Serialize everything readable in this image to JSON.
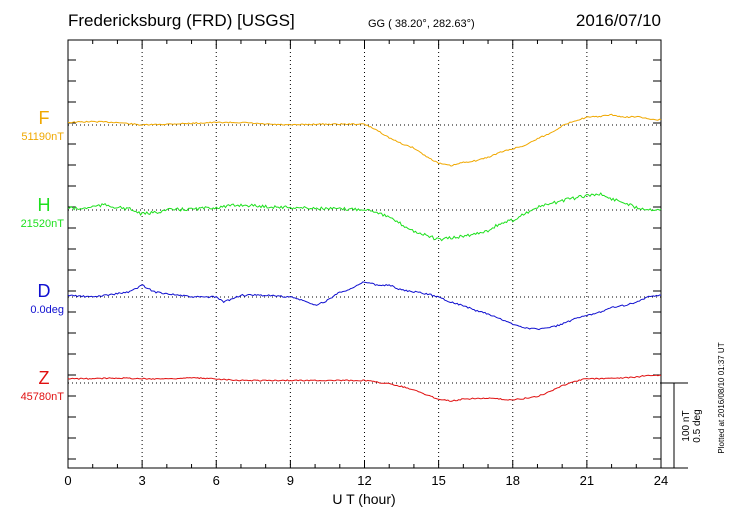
{
  "header": {
    "station": "Fredericksburg (FRD)  [USGS]",
    "coords": "GG ( 38.20°, 282.63°)",
    "date": "2016/07/10"
  },
  "side_note": "Plotted at 2016/08/10 01:37 UT",
  "scale_bar": {
    "top_label": "100 nT",
    "bottom_label": "0.5 deg"
  },
  "chart_data": {
    "type": "line",
    "xlabel": "U T (hour)",
    "xlim": [
      0,
      24
    ],
    "xticks": [
      0,
      3,
      6,
      9,
      12,
      15,
      18,
      21,
      24
    ],
    "grid": true,
    "colors": {
      "F": "#f0a800",
      "H": "#1ee01e",
      "D": "#1010d0",
      "Z": "#e01010"
    },
    "series": [
      {
        "name": "F",
        "baseline_label": "51190nT",
        "unit": "nT",
        "baseline": 51190,
        "x": [
          0,
          1,
          2,
          3,
          4,
          5,
          6,
          7,
          8,
          9,
          10,
          11,
          12,
          12.5,
          13,
          13.5,
          14,
          14.5,
          15,
          15.5,
          16,
          16.5,
          17,
          17.5,
          18,
          18.5,
          19,
          19.5,
          20,
          20.5,
          21,
          21.5,
          22,
          22.5,
          23,
          23.5,
          24
        ],
        "y": [
          3,
          4,
          3,
          0,
          1,
          2,
          3,
          3,
          1,
          0,
          1,
          1,
          1,
          -6,
          -15,
          -22,
          -27,
          -37,
          -45,
          -48,
          -44,
          -42,
          -38,
          -32,
          -28,
          -24,
          -16,
          -10,
          -1,
          5,
          9,
          10,
          12,
          9,
          10,
          7,
          6
        ]
      },
      {
        "name": "H",
        "baseline_label": "21520nT",
        "unit": "nT",
        "baseline": 21520,
        "x": [
          0,
          0.5,
          1,
          1.5,
          2,
          2.5,
          3,
          3.5,
          4,
          5,
          6,
          7,
          8,
          9,
          10,
          11,
          12,
          12.5,
          13,
          13.5,
          14,
          14.5,
          15,
          15.5,
          16,
          16.5,
          17,
          17.5,
          18,
          18.5,
          19,
          19.5,
          20,
          20.5,
          21,
          21.5,
          22,
          22.5,
          23,
          23.5,
          24
        ],
        "y": [
          3,
          1,
          4,
          6,
          3,
          1,
          -5,
          -3,
          0,
          1,
          3,
          6,
          4,
          3,
          2,
          1,
          1,
          -2,
          -9,
          -17,
          -25,
          -30,
          -35,
          -33,
          -31,
          -28,
          -24,
          -16,
          -12,
          -4,
          3,
          7,
          11,
          14,
          17,
          19,
          13,
          9,
          3,
          1,
          1
        ]
      },
      {
        "name": "D",
        "baseline_label": "0.0deg",
        "unit": "deg",
        "baseline": 0.0,
        "x": [
          0,
          1,
          2,
          2.5,
          3,
          3.5,
          4,
          5,
          6,
          6.3,
          7,
          8,
          9,
          9.5,
          10,
          10.5,
          11,
          11.5,
          12,
          12.5,
          13,
          13.5,
          14,
          14.5,
          15,
          15.5,
          16,
          16.5,
          17,
          17.5,
          18,
          18.5,
          19,
          19.5,
          20,
          20.5,
          21,
          21.5,
          22,
          22.5,
          23,
          23.5,
          24
        ],
        "y": [
          0.01,
          0.0,
          0.02,
          0.03,
          0.07,
          0.03,
          0.02,
          0.0,
          0.0,
          -0.03,
          0.01,
          0.01,
          0.0,
          -0.02,
          -0.05,
          -0.02,
          0.03,
          0.05,
          0.09,
          0.07,
          0.07,
          0.04,
          0.03,
          0.02,
          0.0,
          -0.03,
          -0.05,
          -0.08,
          -0.1,
          -0.13,
          -0.16,
          -0.18,
          -0.19,
          -0.18,
          -0.16,
          -0.13,
          -0.11,
          -0.09,
          -0.06,
          -0.05,
          -0.03,
          0.0,
          0.01
        ]
      },
      {
        "name": "Z",
        "baseline_label": "45780nT",
        "unit": "nT",
        "baseline": 45780,
        "x": [
          0,
          1,
          2,
          3,
          4,
          5,
          6,
          7,
          8,
          9,
          10,
          11,
          12,
          12.5,
          13,
          13.5,
          14,
          14.5,
          15,
          15.5,
          16,
          16.5,
          17,
          17.5,
          18,
          18.5,
          19,
          19.5,
          20,
          20.5,
          21,
          21.5,
          22,
          22.5,
          23,
          23.5,
          24
        ],
        "y": [
          5,
          5,
          6,
          5,
          5,
          6,
          5,
          3,
          3,
          3,
          3,
          3,
          3,
          1,
          -1,
          -4,
          -8,
          -14,
          -19,
          -21,
          -19,
          -18,
          -18,
          -19,
          -20,
          -18,
          -16,
          -10,
          -3,
          2,
          5,
          5,
          6,
          6,
          7,
          9,
          9
        ]
      }
    ]
  }
}
